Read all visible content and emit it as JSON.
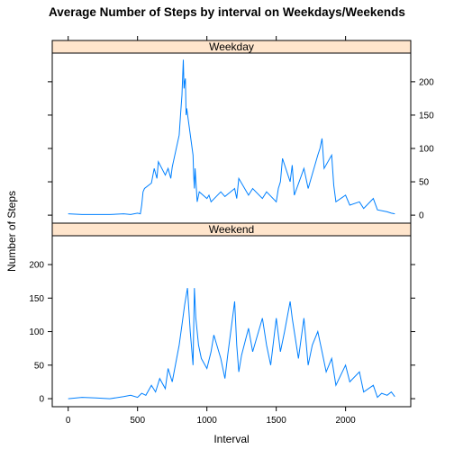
{
  "chart_data": {
    "type": "line",
    "title": "Average Number of Steps by interval on Weekdays/Weekends",
    "xlabel": "Interval",
    "ylabel": "Number of Steps",
    "xlim": [
      -115,
      2470
    ],
    "ylim": [
      -12,
      243
    ],
    "x_ticks": [
      0,
      500,
      1000,
      1500,
      2000
    ],
    "y_ticks": [
      0,
      50,
      100,
      150,
      200
    ],
    "line_color": "#0080ff",
    "strip_color": "#ffe5cc",
    "panels": [
      {
        "name": "Weekday",
        "x": [
          0,
          100,
          200,
          300,
          400,
          450,
          500,
          520,
          530,
          540,
          550,
          600,
          620,
          640,
          650,
          700,
          720,
          740,
          750,
          800,
          810,
          820,
          830,
          835,
          840,
          845,
          850,
          855,
          900,
          905,
          910,
          915,
          930,
          945,
          1000,
          1015,
          1030,
          1100,
          1130,
          1200,
          1215,
          1230,
          1300,
          1330,
          1400,
          1430,
          1500,
          1515,
          1530,
          1545,
          1600,
          1615,
          1630,
          1700,
          1730,
          1800,
          1815,
          1830,
          1845,
          1900,
          1915,
          1930,
          2000,
          2030,
          2100,
          2130,
          2200,
          2230,
          2300,
          2330,
          2355
        ],
        "y": [
          2,
          1,
          1,
          1,
          2,
          1,
          3,
          2,
          15,
          35,
          40,
          48,
          70,
          55,
          80,
          60,
          70,
          55,
          72,
          120,
          150,
          180,
          233,
          190,
          200,
          205,
          150,
          160,
          90,
          60,
          40,
          70,
          20,
          35,
          25,
          30,
          20,
          35,
          28,
          40,
          25,
          55,
          30,
          40,
          25,
          35,
          20,
          40,
          50,
          85,
          50,
          75,
          30,
          70,
          40,
          90,
          100,
          115,
          70,
          90,
          45,
          20,
          30,
          15,
          20,
          10,
          25,
          8,
          5,
          3,
          2
        ]
      },
      {
        "name": "Weekend",
        "x": [
          0,
          100,
          200,
          300,
          400,
          450,
          500,
          530,
          560,
          600,
          630,
          660,
          700,
          720,
          750,
          800,
          820,
          840,
          860,
          880,
          900,
          910,
          920,
          940,
          960,
          1000,
          1030,
          1050,
          1100,
          1130,
          1150,
          1200,
          1215,
          1230,
          1250,
          1300,
          1330,
          1400,
          1430,
          1460,
          1500,
          1530,
          1560,
          1600,
          1615,
          1630,
          1660,
          1700,
          1730,
          1760,
          1800,
          1830,
          1860,
          1900,
          1930,
          2000,
          2030,
          2100,
          2130,
          2200,
          2230,
          2260,
          2300,
          2330,
          2355
        ],
        "y": [
          0,
          2,
          1,
          0,
          3,
          5,
          2,
          8,
          5,
          20,
          10,
          30,
          15,
          45,
          25,
          80,
          110,
          140,
          165,
          100,
          50,
          165,
          120,
          80,
          60,
          45,
          70,
          95,
          60,
          30,
          65,
          145,
          80,
          40,
          65,
          105,
          70,
          120,
          80,
          50,
          120,
          70,
          100,
          145,
          120,
          100,
          60,
          120,
          50,
          80,
          100,
          70,
          40,
          60,
          20,
          50,
          25,
          40,
          10,
          20,
          2,
          8,
          5,
          10,
          3
        ]
      }
    ]
  }
}
